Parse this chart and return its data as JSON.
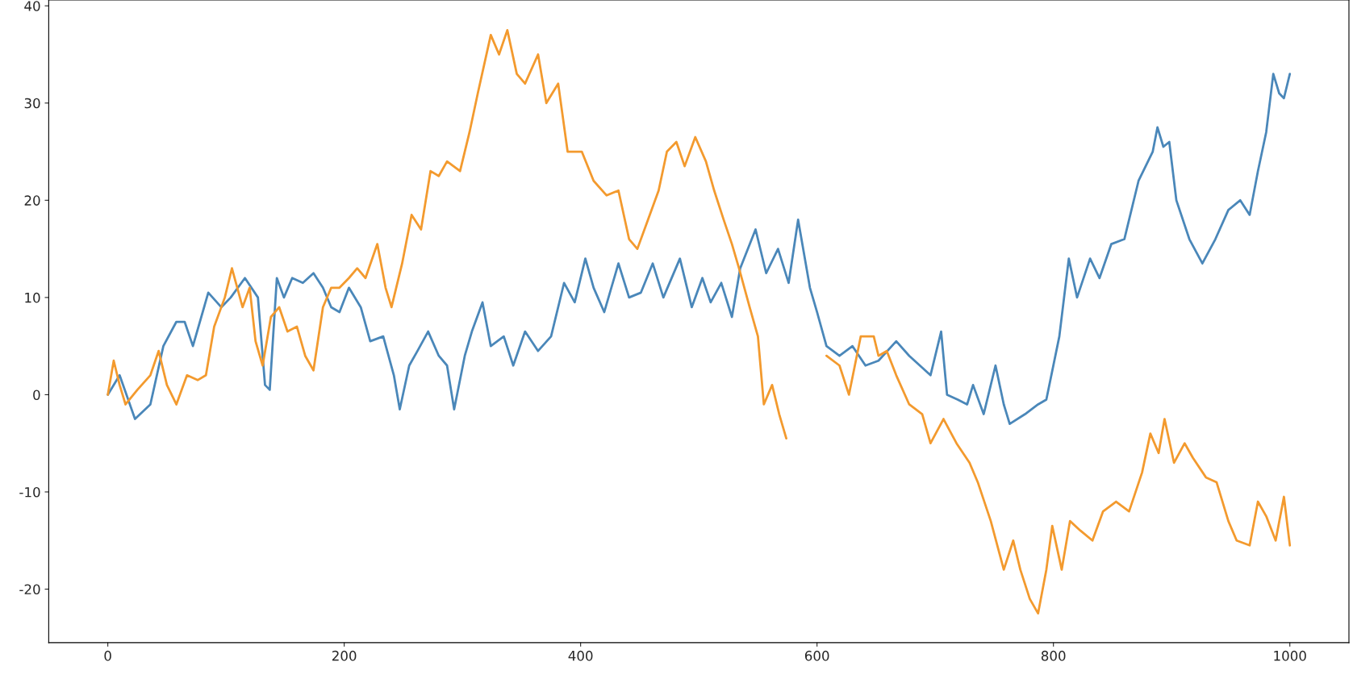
{
  "chart_data": {
    "type": "line",
    "xlim": [
      -50,
      1050
    ],
    "ylim": [
      -25.5,
      40.6
    ],
    "xticks": [
      0,
      200,
      400,
      600,
      800,
      1000
    ],
    "yticks": [
      -20,
      -10,
      0,
      10,
      20,
      30,
      40
    ],
    "grid": false,
    "series": [
      {
        "color": "#4a87b9",
        "x": [
          0,
          10,
          23,
          36,
          47,
          58,
          65,
          72,
          85,
          96,
          104,
          116,
          127,
          133,
          137,
          143,
          149,
          156,
          165,
          174,
          182,
          189,
          196,
          204,
          214,
          222,
          233,
          242,
          247,
          255,
          262,
          271,
          280,
          287,
          293,
          302,
          308,
          317,
          324,
          335,
          343,
          353,
          364,
          375,
          386,
          395,
          404,
          411,
          420,
          432,
          441,
          451,
          461,
          470,
          484,
          494,
          503,
          510,
          519,
          528,
          535,
          548,
          557,
          567,
          576,
          584,
          594,
          600,
          608,
          619,
          630,
          641,
          652,
          667,
          678,
          687,
          696,
          705,
          710,
          719,
          727,
          732,
          741,
          751,
          758,
          763,
          776,
          787,
          794,
          805,
          813,
          820,
          831,
          839,
          849,
          860,
          872,
          884,
          888,
          893,
          898,
          904,
          915,
          926,
          937,
          948,
          958,
          966,
          973,
          980,
          986,
          991,
          995,
          1000
        ],
        "values": [
          0,
          2,
          -2.5,
          -1,
          5,
          7.5,
          7.5,
          5,
          10.5,
          9,
          10,
          12,
          10,
          1,
          0.5,
          12,
          10,
          12,
          11.5,
          12.5,
          11,
          9,
          8.5,
          11,
          9,
          5.5,
          6,
          2,
          -1.5,
          3,
          4.5,
          6.5,
          4,
          3,
          -1.5,
          4,
          6.5,
          9.5,
          5,
          6,
          3,
          6.5,
          4.5,
          6,
          11.5,
          9.5,
          14,
          11,
          8.5,
          13.5,
          10,
          10.5,
          13.5,
          10,
          14,
          9,
          12,
          9.5,
          11.5,
          8,
          13,
          17,
          12.5,
          15,
          11.5,
          18,
          11,
          8.5,
          5,
          4,
          5,
          3,
          3.5,
          5.5,
          4,
          3,
          2,
          6.5,
          0,
          -0.5,
          -1,
          1,
          -2,
          3,
          -1,
          -3,
          -2,
          -1,
          -0.5,
          6,
          14,
          10,
          14,
          12,
          15.5,
          16,
          22,
          25,
          27.5,
          25.5,
          26,
          20,
          16,
          13.5,
          16,
          19,
          20,
          18.5,
          23,
          27,
          33,
          31,
          30.5,
          33
        ]
      },
      {
        "color": "#f39a2e",
        "x": [
          0,
          5,
          10,
          15,
          25,
          36,
          43,
          50,
          58,
          67,
          76,
          83,
          90,
          99,
          105,
          114,
          120,
          125,
          131,
          138,
          145,
          152,
          160,
          167,
          174,
          182,
          189,
          196,
          204,
          211,
          218,
          228,
          235,
          240,
          249,
          257,
          265,
          273,
          280,
          287,
          298,
          306,
          313,
          324,
          331,
          338,
          346,
          353,
          364,
          371,
          381,
          389,
          401,
          411,
          422,
          432,
          441,
          448,
          457,
          466,
          473,
          481,
          488,
          497,
          506,
          513,
          521,
          528,
          534,
          543,
          550,
          555,
          562,
          568,
          574,
          590,
          608,
          619,
          627,
          637,
          648,
          652,
          659,
          667,
          678,
          689,
          696,
          707,
          718,
          729,
          736,
          747,
          758,
          766,
          772,
          780,
          787,
          794,
          799,
          807,
          814,
          823,
          833,
          842,
          853,
          864,
          875,
          882,
          889,
          894,
          902,
          911,
          918,
          929,
          938,
          948,
          955,
          966,
          973,
          980,
          988,
          995,
          1000
        ],
        "values": [
          0,
          3.5,
          1,
          -1,
          0.5,
          2,
          4.5,
          1,
          -1,
          2,
          1.5,
          2,
          7,
          10,
          13,
          9,
          11,
          5.5,
          3,
          8,
          9,
          6.5,
          7,
          4,
          2.5,
          9,
          11,
          11,
          12,
          13,
          12,
          15.5,
          11,
          9,
          13.5,
          18.5,
          17,
          23,
          22.5,
          24,
          23,
          27,
          31,
          37,
          35,
          37.5,
          33,
          32,
          35,
          30,
          32,
          25,
          25,
          22,
          20.5,
          21,
          16,
          15,
          18,
          21,
          25,
          26,
          23.5,
          26.5,
          24,
          21,
          18,
          15.5,
          13,
          9,
          6,
          -1,
          1,
          -2,
          -4.5,
          null,
          4,
          3,
          0,
          6,
          6,
          4,
          4.5,
          2,
          -1,
          -2,
          -5,
          -2.5,
          -5,
          -7,
          -9,
          -13,
          -18,
          -15,
          -18,
          -21,
          -22.5,
          -18,
          -13.5,
          -18,
          -13,
          -14,
          -15,
          -12,
          -11,
          -12,
          -8,
          -4,
          -6,
          -2.5,
          -7,
          -5,
          -6.5,
          -8.5,
          -9,
          -13,
          -15,
          -15.5,
          -11,
          -12.5,
          -15,
          -10.5,
          -15.5
        ]
      }
    ]
  }
}
